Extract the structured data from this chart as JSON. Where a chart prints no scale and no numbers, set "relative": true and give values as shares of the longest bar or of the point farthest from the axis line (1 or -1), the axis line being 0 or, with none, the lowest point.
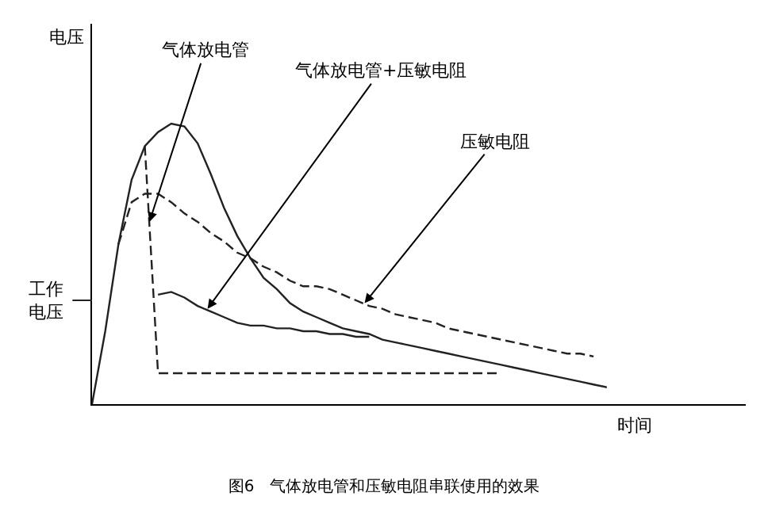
{
  "chart_data": {
    "type": "line",
    "relative": true,
    "ylabel": "电压",
    "xlabel": "时间",
    "title": "图6　气体放电管和压敏电阻串联使用的效果",
    "marker": "none",
    "categories": [
      null,
      null,
      null,
      null,
      null,
      null,
      null,
      null,
      null,
      null,
      null,
      null,
      null,
      null,
      null,
      null,
      null,
      null,
      null,
      null,
      null,
      null,
      null,
      null,
      null,
      null,
      null,
      null,
      null,
      null,
      null,
      null,
      null,
      null,
      null,
      null,
      null,
      null,
      null,
      null
    ],
    "series": [
      {
        "color": "#222222",
        "line_style": "solid",
        "values": [
          0,
          0.26,
          0.57,
          0.8,
          0.92,
          0.97,
          1.0,
          0.99,
          0.93,
          0.82,
          0.7,
          0.6,
          0.52,
          0.45,
          0.41,
          0.36,
          0.33,
          0.31,
          0.29,
          0.27,
          0.26,
          0.25,
          0.23,
          0.22,
          0.21,
          0.2,
          0.19,
          0.18,
          0.17,
          0.16,
          0.15,
          0.14,
          0.13,
          0.12,
          0.11,
          0.1,
          0.09,
          0.08,
          0.07,
          0.06
        ]
      },
      {
        "color": "#222222",
        "line_style": "dashed",
        "values": [
          null,
          null,
          null,
          null,
          0.92,
          0.11,
          0.11,
          0.11,
          0.11,
          0.11,
          0.11,
          0.11,
          0.11,
          0.11,
          0.11,
          0.11,
          0.11,
          0.11,
          0.11,
          0.11,
          0.11,
          0.11,
          0.11,
          0.11,
          0.11,
          0.11,
          0.11,
          0.11,
          0.11,
          0.11,
          0.11,
          0.11,
          null,
          null,
          null,
          null,
          null,
          null,
          null,
          null
        ]
      },
      {
        "color": "#222222",
        "line_style": "dashed",
        "values": [
          null,
          null,
          0.57,
          0.72,
          0.75,
          0.75,
          0.72,
          0.68,
          0.65,
          0.61,
          0.58,
          0.54,
          0.52,
          0.49,
          0.47,
          0.44,
          0.42,
          0.42,
          0.41,
          0.39,
          0.37,
          0.35,
          0.34,
          0.32,
          0.31,
          0.3,
          0.29,
          0.27,
          0.26,
          0.25,
          0.24,
          0.23,
          0.22,
          0.21,
          0.2,
          0.19,
          0.18,
          0.18,
          0.17,
          null
        ]
      },
      {
        "color": "#222222",
        "line_style": "solid",
        "values": [
          null,
          null,
          null,
          null,
          null,
          0.39,
          0.4,
          0.38,
          0.35,
          0.33,
          0.31,
          0.29,
          0.28,
          0.28,
          0.27,
          0.27,
          0.26,
          0.26,
          0.25,
          0.25,
          0.24,
          0.24,
          null,
          null,
          null,
          null,
          null,
          null,
          null,
          null,
          null,
          null,
          null,
          null,
          null,
          null,
          null,
          null,
          null,
          null
        ]
      }
    ],
    "ref_lines": [
      {
        "axis": "y",
        "value": 0.37,
        "label": "工作电压"
      }
    ],
    "annotations": [
      "气体放电管",
      "气体放电管+压敏电阻",
      "压敏电阻"
    ]
  }
}
